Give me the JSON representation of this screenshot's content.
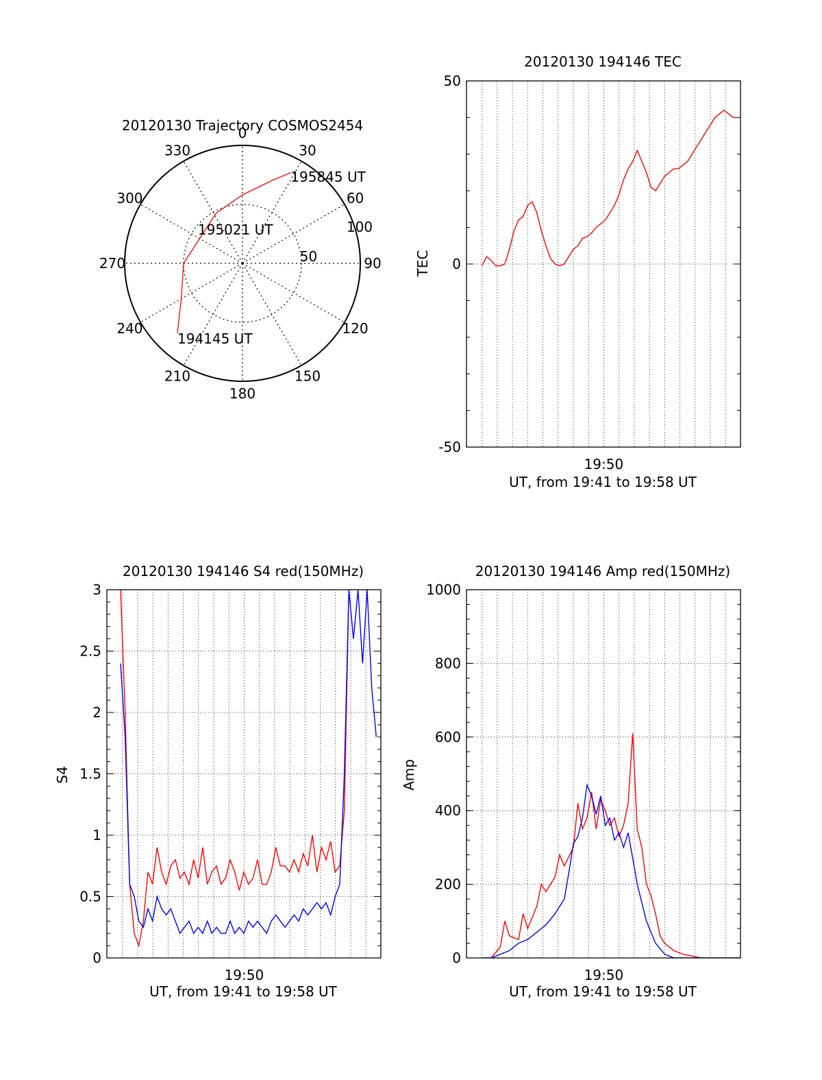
{
  "chart_data": [
    {
      "type": "polar",
      "title": "20120130 Trajectory COSMOS2454",
      "azimuth_labels": [
        "0",
        "30",
        "60",
        "90",
        "120",
        "150",
        "180",
        "210",
        "240",
        "270",
        "300",
        "330"
      ],
      "radial_labels": [
        "50",
        "100"
      ],
      "rlim": [
        0,
        100
      ],
      "trajectory": [
        {
          "az": 223,
          "r": 81
        },
        {
          "az": 240,
          "r": 60
        },
        {
          "az": 270,
          "r": 50
        },
        {
          "az": 300,
          "r": 42
        },
        {
          "az": 332,
          "r": 48
        },
        {
          "az": 0,
          "r": 58
        },
        {
          "az": 20,
          "r": 75
        },
        {
          "az": 28,
          "r": 87
        }
      ],
      "annotations": [
        {
          "text": "195845 UT",
          "az": 28,
          "r": 87
        },
        {
          "text": "195021 UT",
          "az": 330,
          "r": 12
        },
        {
          "text": "194145 UT",
          "az": 223,
          "r": 81
        }
      ],
      "color": "#ff0000"
    },
    {
      "type": "line",
      "title": "20120130 194146 TEC",
      "xlabel": "UT, from 19:41 to 19:58 UT",
      "ylabel": "TEC",
      "xlim": [
        19.683,
        19.983
      ],
      "ylim": [
        -50,
        50
      ],
      "yticks": [
        "50",
        "0",
        "-50"
      ],
      "xticks": [
        {
          "label": "19:50",
          "x": 19.8333
        }
      ],
      "grid": true,
      "series": [
        {
          "color": "#ff0000",
          "x": [
            19.7,
            19.702,
            19.705,
            19.71,
            19.715,
            19.72,
            19.725,
            19.73,
            19.735,
            19.74,
            19.745,
            19.75,
            19.755,
            19.76,
            19.765,
            19.77,
            19.775,
            19.78,
            19.785,
            19.79,
            19.795,
            19.8,
            19.805,
            19.81,
            19.815,
            19.82,
            19.825,
            19.83,
            19.835,
            19.84,
            19.845,
            19.85,
            19.855,
            19.86,
            19.865,
            19.87,
            19.875,
            19.88,
            19.885,
            19.89,
            19.895,
            19.9,
            19.905,
            19.91,
            19.915,
            19.92,
            19.925,
            19.93,
            19.935,
            19.94,
            19.945,
            19.95,
            19.955,
            19.96,
            19.965,
            19.97,
            19.975,
            19.98
          ],
          "values": [
            -0.5,
            0.5,
            2,
            1,
            -0.5,
            -0.5,
            0,
            4,
            9,
            12,
            13,
            16,
            17,
            14,
            9,
            5,
            1.5,
            0,
            -0.5,
            0,
            2,
            4,
            5,
            7,
            7.5,
            8.5,
            10,
            11,
            12,
            14,
            16,
            19,
            23,
            26,
            28,
            31,
            28,
            25,
            21,
            20,
            22,
            24,
            25,
            26,
            26,
            27,
            28,
            30,
            32,
            34,
            36,
            38,
            40,
            41,
            42,
            41,
            40,
            40
          ]
        }
      ]
    },
    {
      "type": "line",
      "title": "20120130 194146 S4 red(150MHz)",
      "xlabel": "UT, from 19:41 to 19:58 UT",
      "ylabel": "S4",
      "xlim": [
        19.683,
        19.983
      ],
      "ylim": [
        0,
        3
      ],
      "yticks": [
        "0",
        "0.5",
        "1",
        "1.5",
        "2",
        "2.5",
        "3"
      ],
      "xticks": [
        {
          "label": "19:50",
          "x": 19.8333
        }
      ],
      "grid": true,
      "series": [
        {
          "color": "#ff0000",
          "x": [
            19.698,
            19.703,
            19.708,
            19.713,
            19.718,
            19.723,
            19.728,
            19.733,
            19.738,
            19.743,
            19.748,
            19.753,
            19.758,
            19.763,
            19.768,
            19.773,
            19.778,
            19.783,
            19.788,
            19.793,
            19.798,
            19.803,
            19.808,
            19.813,
            19.818,
            19.823,
            19.828,
            19.833,
            19.838,
            19.843,
            19.848,
            19.853,
            19.858,
            19.863,
            19.868,
            19.873,
            19.878,
            19.883,
            19.888,
            19.893,
            19.898,
            19.903,
            19.908,
            19.913,
            19.918,
            19.923,
            19.928,
            19.933,
            19.938,
            19.943,
            19.948
          ],
          "values": [
            3.0,
            2.0,
            0.6,
            0.2,
            0.1,
            0.3,
            0.7,
            0.6,
            0.9,
            0.7,
            0.6,
            0.75,
            0.8,
            0.65,
            0.7,
            0.6,
            0.8,
            0.65,
            0.9,
            0.6,
            0.7,
            0.75,
            0.6,
            0.65,
            0.8,
            0.7,
            0.55,
            0.7,
            0.6,
            0.65,
            0.8,
            0.6,
            0.6,
            0.7,
            0.9,
            0.75,
            0.75,
            0.7,
            0.8,
            0.7,
            0.85,
            0.75,
            1.0,
            0.7,
            0.9,
            0.8,
            0.95,
            0.7,
            0.75,
            1.2,
            3.0
          ]
        },
        {
          "color": "#0000ff",
          "x": [
            19.698,
            19.703,
            19.708,
            19.713,
            19.718,
            19.723,
            19.728,
            19.733,
            19.738,
            19.743,
            19.748,
            19.753,
            19.758,
            19.763,
            19.768,
            19.773,
            19.778,
            19.783,
            19.788,
            19.793,
            19.798,
            19.803,
            19.808,
            19.813,
            19.818,
            19.823,
            19.828,
            19.833,
            19.838,
            19.843,
            19.848,
            19.853,
            19.858,
            19.863,
            19.868,
            19.873,
            19.878,
            19.883,
            19.888,
            19.893,
            19.898,
            19.903,
            19.908,
            19.913,
            19.918,
            19.923,
            19.928,
            19.933,
            19.938,
            19.943,
            19.948,
            19.953,
            19.958,
            19.963,
            19.968,
            19.973,
            19.978
          ],
          "values": [
            2.4,
            1.8,
            0.6,
            0.5,
            0.3,
            0.25,
            0.4,
            0.3,
            0.5,
            0.4,
            0.35,
            0.4,
            0.3,
            0.2,
            0.25,
            0.3,
            0.2,
            0.25,
            0.2,
            0.3,
            0.2,
            0.25,
            0.2,
            0.2,
            0.3,
            0.2,
            0.25,
            0.2,
            0.3,
            0.25,
            0.3,
            0.25,
            0.2,
            0.3,
            0.35,
            0.3,
            0.25,
            0.3,
            0.35,
            0.3,
            0.4,
            0.35,
            0.4,
            0.45,
            0.4,
            0.45,
            0.35,
            0.5,
            0.6,
            1.5,
            3.0,
            2.6,
            3.0,
            2.4,
            3.0,
            2.2,
            1.8
          ]
        }
      ]
    },
    {
      "type": "line",
      "title": "20120130 194146 Amp red(150MHz)",
      "xlabel": "UT, from 19:41 to 19:58 UT",
      "ylabel": "Amp",
      "xlim": [
        19.683,
        19.983
      ],
      "ylim": [
        0,
        1000
      ],
      "yticks": [
        "0",
        "200",
        "400",
        "600",
        "800",
        "1000"
      ],
      "xticks": [
        {
          "label": "19:50",
          "x": 19.8333
        }
      ],
      "grid": true,
      "series": [
        {
          "color": "#ff0000",
          "x": [
            19.7,
            19.71,
            19.72,
            19.725,
            19.73,
            19.74,
            19.745,
            19.75,
            19.76,
            19.765,
            19.77,
            19.78,
            19.785,
            19.79,
            19.8,
            19.805,
            19.81,
            19.815,
            19.82,
            19.825,
            19.83,
            19.835,
            19.84,
            19.845,
            19.85,
            19.855,
            19.86,
            19.865,
            19.87,
            19.875,
            19.88,
            19.885,
            19.89,
            19.895,
            19.9,
            19.905,
            19.91,
            19.92,
            19.93,
            19.94,
            19.95,
            19.96,
            19.97,
            19.983
          ],
          "values": [
            0,
            0,
            30,
            100,
            60,
            50,
            120,
            80,
            140,
            200,
            180,
            220,
            280,
            250,
            300,
            420,
            350,
            380,
            450,
            350,
            430,
            400,
            360,
            380,
            330,
            360,
            420,
            610,
            350,
            300,
            200,
            170,
            120,
            60,
            40,
            30,
            20,
            10,
            5,
            0,
            0,
            0,
            0,
            0
          ]
        },
        {
          "color": "#0000ff",
          "x": [
            19.7,
            19.71,
            19.72,
            19.73,
            19.74,
            19.75,
            19.76,
            19.77,
            19.78,
            19.79,
            19.795,
            19.8,
            19.805,
            19.81,
            19.815,
            19.82,
            19.825,
            19.83,
            19.835,
            19.84,
            19.845,
            19.85,
            19.855,
            19.86,
            19.865,
            19.87,
            19.875,
            19.88,
            19.885,
            19.89,
            19.895,
            19.9,
            19.905,
            19.91,
            19.92,
            19.93,
            19.94,
            19.95,
            19.96,
            19.97,
            19.983
          ],
          "values": [
            0,
            0,
            10,
            20,
            40,
            50,
            70,
            90,
            120,
            160,
            230,
            310,
            330,
            380,
            470,
            440,
            390,
            440,
            360,
            380,
            320,
            340,
            300,
            340,
            270,
            200,
            150,
            100,
            70,
            40,
            25,
            10,
            5,
            0,
            0,
            0,
            0,
            0,
            0,
            0,
            0
          ]
        }
      ]
    }
  ]
}
